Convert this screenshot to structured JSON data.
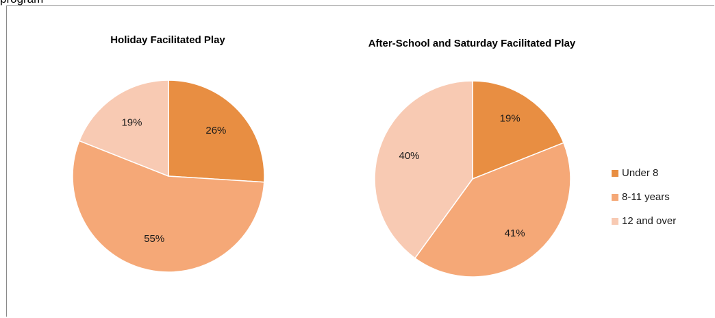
{
  "top_fragment": "program",
  "colors": {
    "under_8": "#E88E42",
    "8_11": "#F5A877",
    "12_over": "#F8CAB3"
  },
  "legend": [
    {
      "label": "Under 8",
      "color": "#E88E42"
    },
    {
      "label": "8-11 years",
      "color": "#F5A877"
    },
    {
      "label": "12 and over",
      "color": "#F8CAB3"
    }
  ],
  "chart_data": [
    {
      "type": "pie",
      "title": "Holiday Facilitated Play",
      "categories": [
        "Under 8",
        "8-11 years",
        "12 and over"
      ],
      "values": [
        26,
        55,
        19
      ],
      "labels": [
        "26%",
        "55%",
        "19%"
      ]
    },
    {
      "type": "pie",
      "title": "After-School and Saturday Facilitated Play",
      "categories": [
        "Under 8",
        "8-11 years",
        "12 and over"
      ],
      "values": [
        19,
        41,
        40
      ],
      "labels": [
        "19%",
        "41%",
        "40%"
      ]
    }
  ]
}
